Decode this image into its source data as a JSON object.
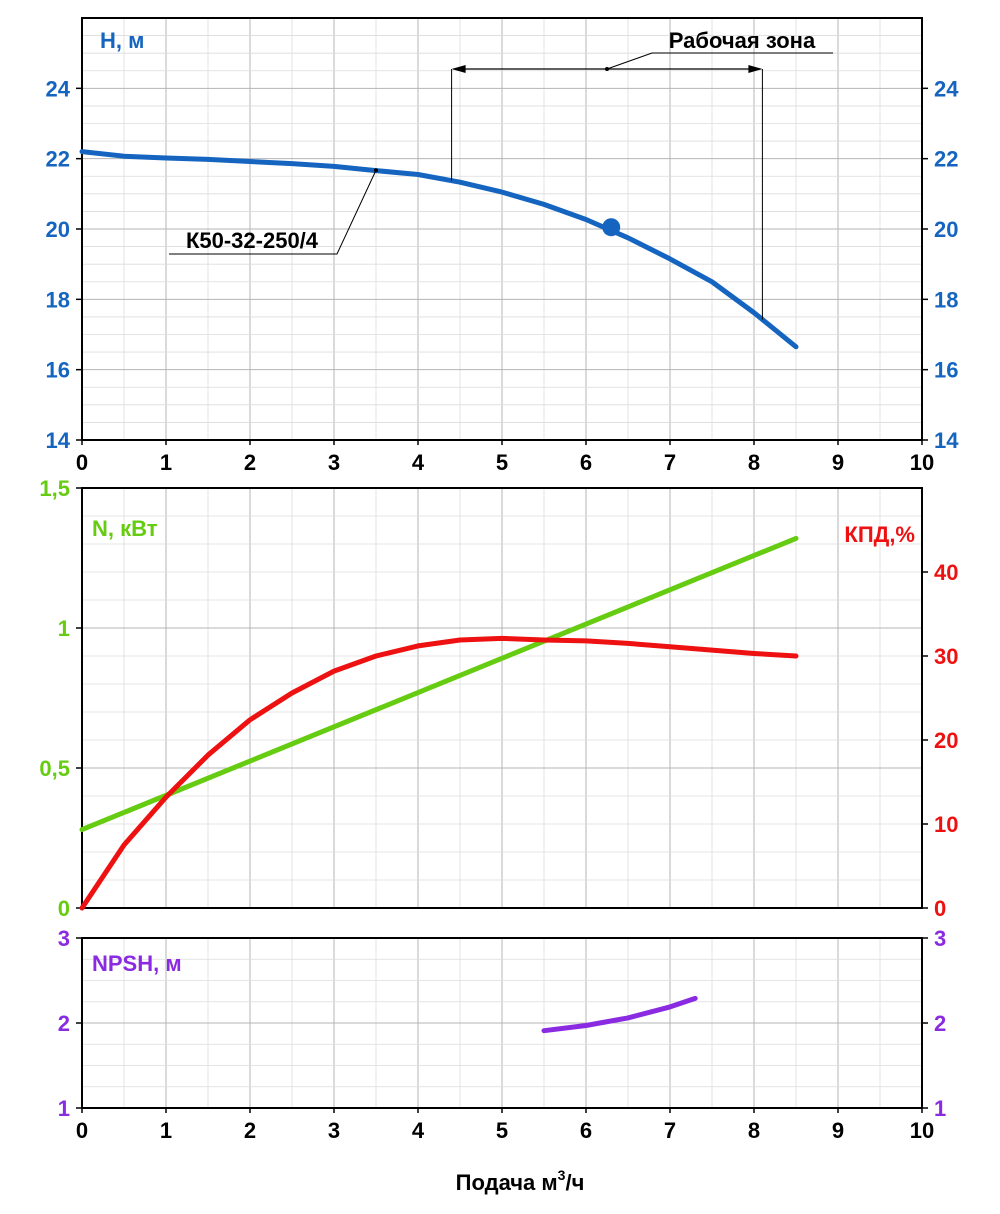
{
  "chart_data": [
    {
      "type": "line",
      "panel": "head",
      "ylabel": "H, м",
      "xlim": [
        0,
        10
      ],
      "ylim": [
        14,
        26
      ],
      "yticks": [
        14,
        16,
        18,
        20,
        22,
        24
      ],
      "ytick_labels": [
        "14",
        "16",
        "18",
        "20",
        "22",
        "24"
      ],
      "xticks": [
        0,
        1,
        2,
        3,
        4,
        5,
        6,
        7,
        8,
        9,
        10
      ],
      "xtick_labels": [
        "0",
        "1",
        "2",
        "3",
        "4",
        "5",
        "6",
        "7",
        "8",
        "9",
        "10"
      ],
      "grid": true,
      "series": [
        {
          "name": "К50-32-250/4",
          "color": "#1565c0",
          "x": [
            0,
            0.5,
            1,
            1.5,
            2,
            2.5,
            3,
            3.5,
            4,
            4.5,
            5,
            5.5,
            6,
            6.5,
            7,
            7.5,
            8,
            8.5
          ],
          "y": [
            22.2,
            22.07,
            22.02,
            21.98,
            21.92,
            21.86,
            21.78,
            21.66,
            21.55,
            21.33,
            21.05,
            20.7,
            20.27,
            19.75,
            19.15,
            18.5,
            17.62,
            16.65
          ]
        }
      ],
      "marker": {
        "x": 6.3,
        "y": 20.05
      },
      "annotations": [
        {
          "text": "Рабочая зона",
          "range": [
            4.4,
            8.1
          ]
        },
        {
          "text": "К50-32-250/4",
          "x": 3.5,
          "y": 21.67
        }
      ]
    },
    {
      "type": "line",
      "panel": "power-efficiency",
      "ylabel": "N, кВт",
      "ylabel_right": "КПД,%",
      "xlim": [
        0,
        10
      ],
      "ylim": [
        0,
        1.5
      ],
      "ylim_right": [
        0,
        50
      ],
      "yticks": [
        0,
        0.5,
        1,
        1.5
      ],
      "ytick_labels": [
        "0",
        "0,5",
        "1",
        "1,5"
      ],
      "yticks_right": [
        0,
        10,
        20,
        30,
        40
      ],
      "ytick_labels_right": [
        "0",
        "10",
        "20",
        "30",
        "40"
      ],
      "grid": true,
      "series": [
        {
          "axis": "left",
          "color": "#66cc11",
          "x": [
            0,
            8.5
          ],
          "y": [
            0.28,
            1.32
          ]
        },
        {
          "axis": "right",
          "color": "#ee1111",
          "x": [
            0,
            0.5,
            1,
            1.5,
            2,
            2.5,
            3,
            3.5,
            4,
            4.5,
            5,
            5.5,
            6,
            6.5,
            7,
            7.5,
            8,
            8.5
          ],
          "y": [
            0,
            7.5,
            13.2,
            18.2,
            22.4,
            25.6,
            28.2,
            30.0,
            31.2,
            31.9,
            32.1,
            31.9,
            31.8,
            31.5,
            31.1,
            30.7,
            30.3,
            30.0
          ]
        }
      ]
    },
    {
      "type": "line",
      "panel": "npsh",
      "ylabel": "NPSH, м",
      "xlabel": "Подача м",
      "xlabel_sup": "3",
      "xlabel_tail": "/ч",
      "xlim": [
        0,
        10
      ],
      "ylim": [
        1,
        3
      ],
      "yticks": [
        1,
        2,
        3
      ],
      "ytick_labels": [
        "1",
        "2",
        "3"
      ],
      "xticks": [
        0,
        1,
        2,
        3,
        4,
        5,
        6,
        7,
        8,
        9,
        10
      ],
      "xtick_labels": [
        "0",
        "1",
        "2",
        "3",
        "4",
        "5",
        "6",
        "7",
        "8",
        "9",
        "10"
      ],
      "grid": true,
      "series": [
        {
          "color": "#8a2be2",
          "x": [
            5.5,
            6.0,
            6.5,
            7.0,
            7.3
          ],
          "y": [
            1.91,
            1.97,
            2.06,
            2.19,
            2.29
          ]
        }
      ]
    }
  ],
  "colors": {
    "head": "#1565c0",
    "power": "#66cc11",
    "efficiency": "#ee1111",
    "npsh": "#8a2be2"
  }
}
